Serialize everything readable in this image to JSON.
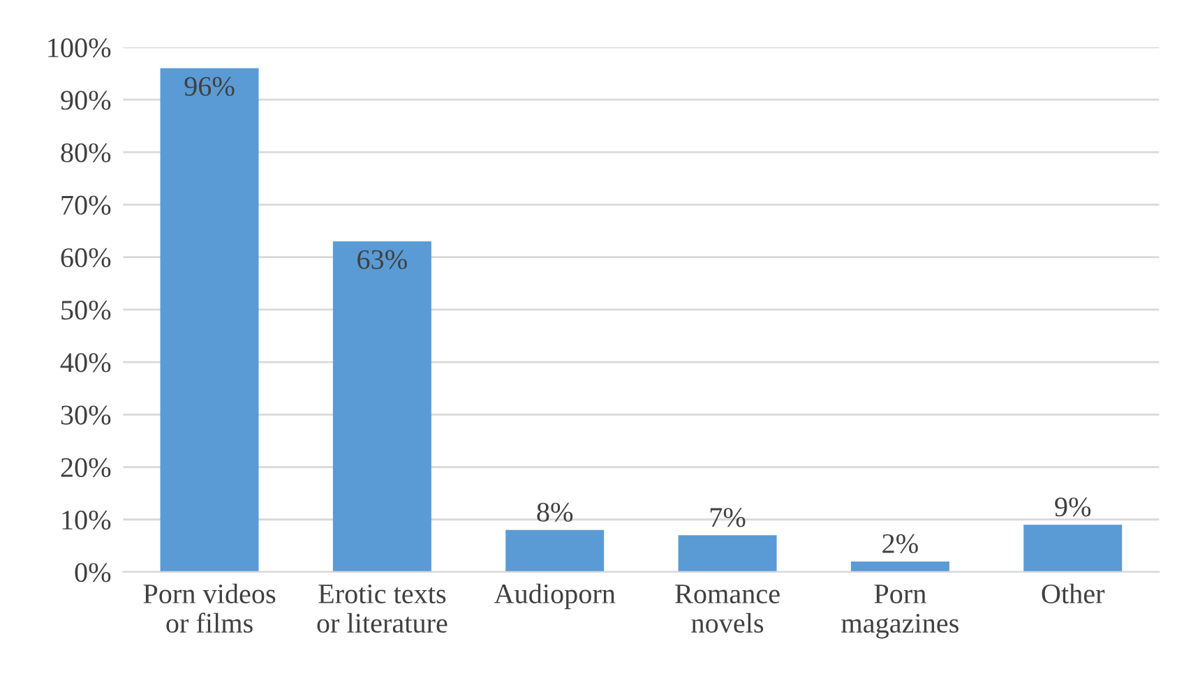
{
  "chart_data": {
    "type": "bar",
    "categories": [
      "Porn videos\nor films",
      "Erotic texts\nor literature",
      "Audioporn",
      "Romance\nnovels",
      "Porn\nmagazines",
      "Other"
    ],
    "values": [
      96,
      63,
      8,
      7,
      2,
      9
    ],
    "color": "#5b9bd5",
    "value_labels": [
      "96%",
      "63%",
      "8%",
      "7%",
      "2%",
      "9%"
    ],
    "ylim": [
      0,
      100
    ],
    "yticks": [
      {
        "value": 0,
        "label": "0%"
      },
      {
        "value": 10,
        "label": "10%"
      },
      {
        "value": 20,
        "label": "20%"
      },
      {
        "value": 30,
        "label": "30%"
      },
      {
        "value": 40,
        "label": "40%"
      },
      {
        "value": 50,
        "label": "50%"
      },
      {
        "value": 60,
        "label": "60%"
      },
      {
        "value": 70,
        "label": "70%"
      },
      {
        "value": 80,
        "label": "80%"
      },
      {
        "value": 90,
        "label": "90%"
      },
      {
        "value": 100,
        "label": "100%"
      }
    ],
    "grid": "y"
  }
}
